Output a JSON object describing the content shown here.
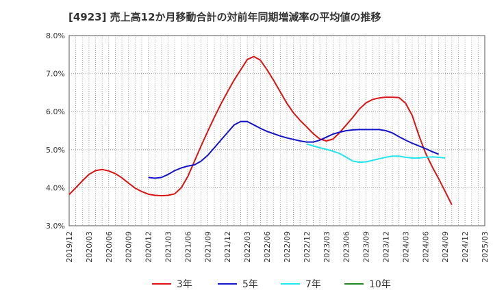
{
  "title": "[4923]  売上高12か月移動合計の対前年同期増減率の平均値の推移",
  "chart_data": {
    "type": "line",
    "ylim": [
      3.0,
      8.0
    ],
    "y_ticks": [
      "3.0%",
      "4.0%",
      "5.0%",
      "6.0%",
      "7.0%",
      "8.0%"
    ],
    "x_ticks": [
      "2019/12",
      "2020/03",
      "2020/06",
      "2020/09",
      "2020/12",
      "2021/03",
      "2021/06",
      "2021/09",
      "2021/12",
      "2022/03",
      "2022/06",
      "2022/09",
      "2022/12",
      "2023/03",
      "2023/06",
      "2023/09",
      "2023/12",
      "2024/03",
      "2024/06",
      "2024/09",
      "2024/12",
      "2025/03"
    ],
    "x_start": "2019-12",
    "grid": true,
    "legend_position": "bottom",
    "series": [
      {
        "name": "3年",
        "color": "#dd1111",
        "start": "2019-12",
        "values": [
          3.82,
          4.0,
          4.18,
          4.35,
          4.45,
          4.48,
          4.44,
          4.37,
          4.26,
          4.12,
          3.99,
          3.9,
          3.83,
          3.8,
          3.79,
          3.8,
          3.84,
          4.0,
          4.3,
          4.7,
          5.1,
          5.48,
          5.85,
          6.2,
          6.52,
          6.83,
          7.1,
          7.37,
          7.45,
          7.35,
          7.1,
          6.82,
          6.52,
          6.22,
          5.97,
          5.77,
          5.6,
          5.42,
          5.28,
          5.23,
          5.28,
          5.45,
          5.65,
          5.85,
          6.07,
          6.23,
          6.32,
          6.36,
          6.38,
          6.38,
          6.37,
          6.22,
          5.9,
          5.38,
          4.92,
          4.56,
          4.24,
          3.9,
          3.55
        ]
      },
      {
        "name": "5年",
        "color": "#1111cc",
        "start": "2020-12",
        "values": [
          4.27,
          4.25,
          4.27,
          4.35,
          4.45,
          4.52,
          4.57,
          4.6,
          4.7,
          4.85,
          5.05,
          5.25,
          5.45,
          5.65,
          5.74,
          5.74,
          5.65,
          5.56,
          5.48,
          5.42,
          5.36,
          5.31,
          5.27,
          5.23,
          5.2,
          5.2,
          5.25,
          5.33,
          5.41,
          5.46,
          5.5,
          5.52,
          5.53,
          5.53,
          5.53,
          5.53,
          5.5,
          5.44,
          5.34,
          5.25,
          5.17,
          5.1,
          5.03,
          4.95,
          4.88
        ]
      },
      {
        "name": "7年",
        "color": "#22e5ee",
        "start": "2022-12",
        "values": [
          5.15,
          5.1,
          5.05,
          5.01,
          4.96,
          4.9,
          4.8,
          4.7,
          4.67,
          4.68,
          4.72,
          4.76,
          4.8,
          4.83,
          4.83,
          4.8,
          4.78,
          4.78,
          4.8,
          4.81,
          4.8,
          4.78
        ]
      },
      {
        "name": "10年",
        "color": "#228822",
        "start": "2019-12",
        "values": []
      }
    ]
  }
}
